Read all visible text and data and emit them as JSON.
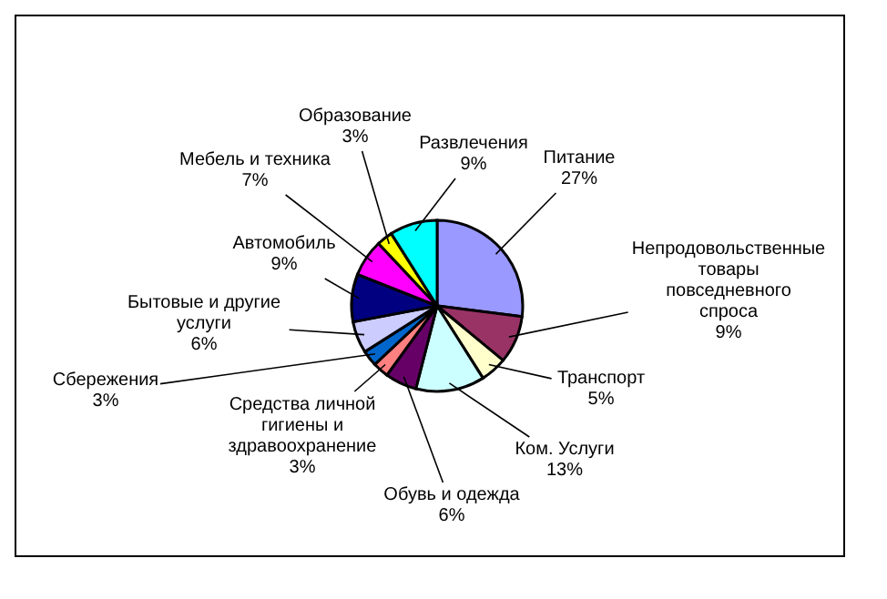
{
  "chart_data": {
    "type": "pie",
    "categories": [
      "Питание",
      "Непродовольственные товары повседневного спроса",
      "Транспорт",
      "Ком. Услуги",
      "Обувь и одежда",
      "Средства личной гигиены и здравоохранение",
      "Сбережения",
      "Бытовые и другие услуги",
      "Автомобиль",
      "Мебель и техника",
      "Образование",
      "Развлечения"
    ],
    "values": [
      27,
      9,
      5,
      13,
      6,
      3,
      3,
      6,
      9,
      7,
      3,
      9
    ],
    "value_labels": [
      "27%",
      "9%",
      "5%",
      "13%",
      "6%",
      "3%",
      "3%",
      "6%",
      "9%",
      "7%",
      "3%",
      "9%"
    ],
    "colors": [
      "#9999ff",
      "#993366",
      "#ffffcc",
      "#ccffff",
      "#660066",
      "#ff8080",
      "#0066cc",
      "#ccccff",
      "#000080",
      "#ff00ff",
      "#ffff00",
      "#00ffff"
    ],
    "legend": false
  }
}
